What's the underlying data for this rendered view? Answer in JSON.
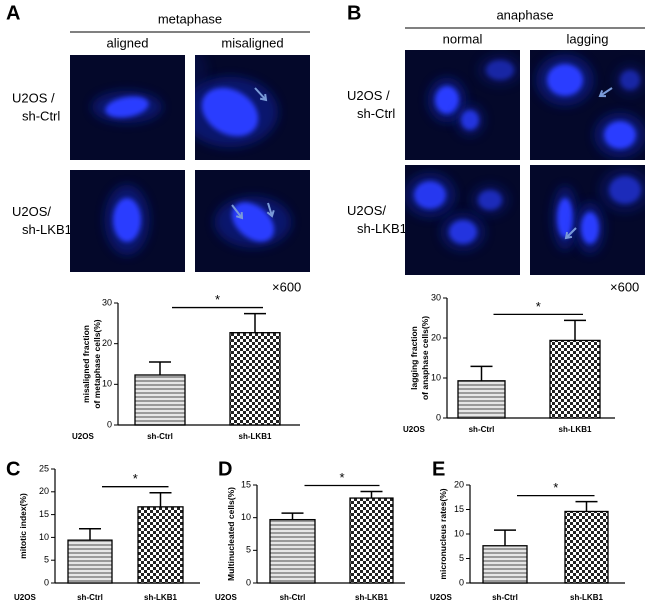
{
  "image_panels": [
    {
      "panel": "A",
      "title": "metaphase",
      "columns": [
        "aligned",
        "misaligned"
      ],
      "rows": [
        [
          "U2OS /",
          "sh-Ctrl"
        ],
        [
          "U2OS/",
          "sh-LKB1"
        ]
      ],
      "magnification": "×600"
    },
    {
      "panel": "B",
      "title": "anaphase",
      "columns": [
        "normal",
        "lagging"
      ],
      "rows": [
        [
          "U2OS /",
          "sh-Ctrl"
        ],
        [
          "U2OS/",
          "sh-LKB1"
        ]
      ],
      "magnification": "×600"
    }
  ],
  "chart_data": [
    {
      "type": "bar",
      "ylabel": [
        "misaligned fraction",
        "of metaphase cells(%)"
      ],
      "xlabel": "U2OS",
      "categories": [
        "sh-Ctrl",
        "sh-LKB1"
      ],
      "values": [
        12.3,
        22.7
      ],
      "errors": [
        3.2,
        4.7
      ],
      "ylim": [
        0,
        30
      ],
      "yticks": [
        0,
        10,
        20,
        30
      ],
      "annotation": "*"
    },
    {
      "type": "bar",
      "ylabel": [
        "lagging fraction",
        "of anaphase cells(%)"
      ],
      "xlabel": "U2OS",
      "categories": [
        "sh-Ctrl",
        "sh-LKB1"
      ],
      "values": [
        9.3,
        19.4
      ],
      "errors": [
        3.6,
        5.0
      ],
      "ylim": [
        0,
        30
      ],
      "yticks": [
        0,
        10,
        20,
        30
      ],
      "annotation": "*"
    },
    {
      "type": "bar",
      "panel": "C",
      "ylabel": [
        "mitotic index(%)"
      ],
      "xlabel": "U2OS",
      "categories": [
        "sh-Ctrl",
        "sh-LKB1"
      ],
      "values": [
        9.4,
        16.7
      ],
      "errors": [
        2.5,
        3.1
      ],
      "ylim": [
        0,
        25
      ],
      "yticks": [
        0,
        5,
        10,
        15,
        20,
        25
      ],
      "annotation": "*"
    },
    {
      "type": "bar",
      "panel": "D",
      "ylabel": [
        "Multinucleated cells(%)"
      ],
      "xlabel": "U2OS",
      "categories": [
        "sh-Ctrl",
        "sh-LKB1"
      ],
      "values": [
        9.7,
        13.0
      ],
      "errors": [
        1.0,
        1.0
      ],
      "ylim": [
        0,
        15
      ],
      "yticks": [
        0,
        5,
        10,
        15
      ],
      "annotation": "*"
    },
    {
      "type": "bar",
      "panel": "E",
      "ylabel": [
        "micronucleus rates(%)"
      ],
      "xlabel": "U2OS",
      "categories": [
        "sh-Ctrl",
        "sh-LKB1"
      ],
      "values": [
        7.6,
        14.6
      ],
      "errors": [
        3.2,
        2.0
      ],
      "ylim": [
        0,
        20
      ],
      "yticks": [
        0,
        5,
        10,
        15,
        20
      ],
      "annotation": "*"
    }
  ]
}
